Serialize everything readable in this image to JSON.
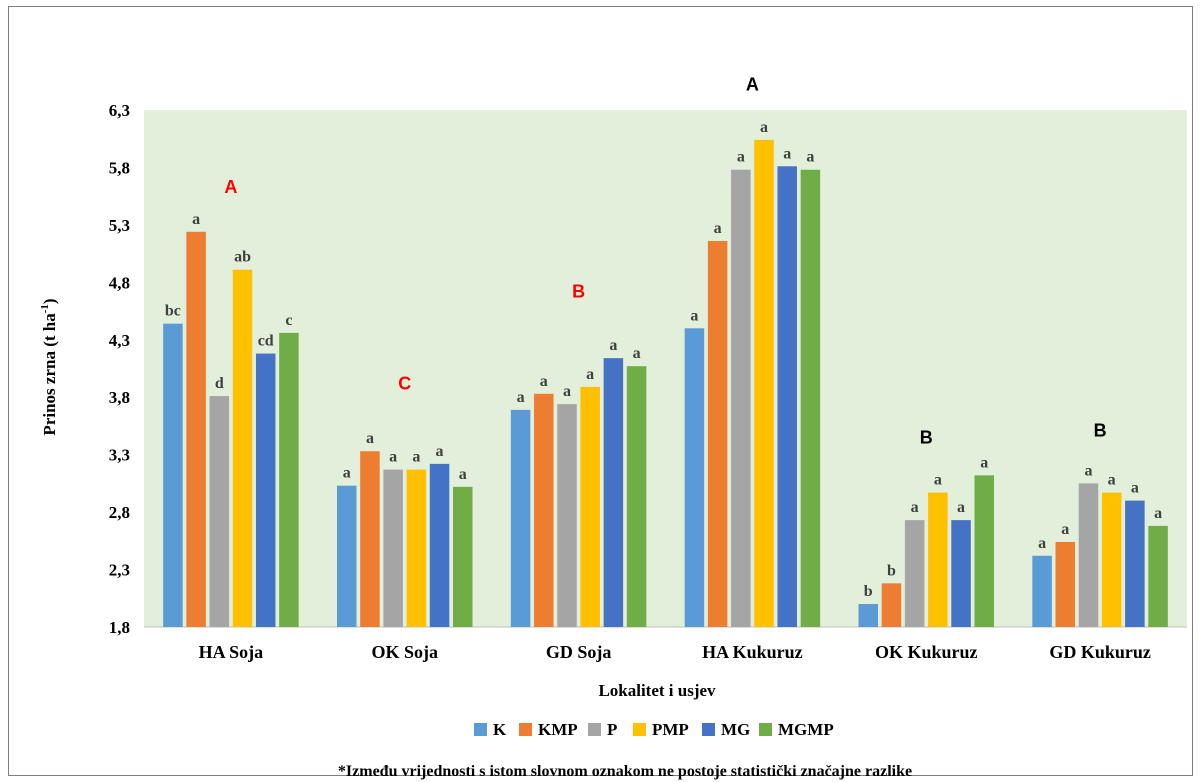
{
  "chart_data": {
    "type": "bar",
    "title": "",
    "xlabel": "Lokalitet i usjev",
    "ylabel": "Prinos zrna (t ha-1)",
    "ylabel_main": "Prinos zrna (t ha",
    "ylabel_sup": "-1",
    "ylabel_end": ")",
    "ylim": [
      1.8,
      6.3
    ],
    "yticks": [
      "1,8",
      "2,3",
      "2,8",
      "3,3",
      "3,8",
      "4,3",
      "4,8",
      "5,3",
      "5,8",
      "6,3"
    ],
    "ytick_values": [
      1.8,
      2.3,
      2.8,
      3.3,
      3.8,
      4.3,
      4.8,
      5.3,
      5.8,
      6.3
    ],
    "grid": false,
    "legend_position": "bottom",
    "plot_background": "#e2efda",
    "categories": [
      "HA Soja",
      "OK Soja",
      "GD Soja",
      "HA Kukuruz",
      "OK Kukuruz",
      "GD Kukuruz"
    ],
    "series": [
      {
        "name": "K",
        "color": "#5b9bd5",
        "values": [
          4.44,
          3.03,
          3.69,
          4.4,
          2.0,
          2.42
        ],
        "labels": [
          "bc",
          "a",
          "a",
          "a",
          "b",
          "a"
        ]
      },
      {
        "name": "KMP",
        "color": "#ed7d31",
        "values": [
          5.24,
          3.33,
          3.83,
          5.16,
          2.18,
          2.54
        ],
        "labels": [
          "a",
          "a",
          "a",
          "a",
          "b",
          "a"
        ]
      },
      {
        "name": "P",
        "color": "#a5a5a5",
        "values": [
          3.81,
          3.17,
          3.74,
          5.78,
          2.73,
          3.05
        ],
        "labels": [
          "d",
          "a",
          "a",
          "a",
          "a",
          "a"
        ]
      },
      {
        "name": "PMP",
        "color": "#ffc000",
        "values": [
          4.91,
          3.17,
          3.89,
          6.04,
          2.97,
          2.97
        ],
        "labels": [
          "ab",
          "a",
          "a",
          "a",
          "a",
          "a"
        ]
      },
      {
        "name": "MG",
        "color": "#4472c4",
        "values": [
          4.18,
          3.22,
          4.14,
          5.81,
          2.73,
          2.9
        ],
        "labels": [
          "cd",
          "a",
          "a",
          "a",
          "a",
          "a"
        ]
      },
      {
        "name": "MGMP",
        "color": "#70ad47",
        "values": [
          4.36,
          3.02,
          4.07,
          5.78,
          3.12,
          2.68
        ],
        "labels": [
          "c",
          "a",
          "a",
          "a",
          "a",
          "a"
        ]
      }
    ],
    "group_labels": [
      {
        "category": "HA Soja",
        "text": "A",
        "color": "#ff0000",
        "value": 5.64
      },
      {
        "category": "OK Soja",
        "text": "C",
        "color": "#ff0000",
        "value": 3.93
      },
      {
        "category": "GD Soja",
        "text": "B",
        "color": "#ff0000",
        "value": 4.73
      },
      {
        "category": "HA Kukuruz",
        "text": "A",
        "color": "#000000",
        "value": 6.53
      },
      {
        "category": "OK Kukuruz",
        "text": "B",
        "color": "#000000",
        "value": 3.46
      },
      {
        "category": "GD Kukuruz",
        "text": "B",
        "color": "#000000",
        "value": 3.52
      }
    ],
    "footnote": "*Između vrijednosti s istom slovnom oznakom ne postoje statistički značajne razlike"
  }
}
